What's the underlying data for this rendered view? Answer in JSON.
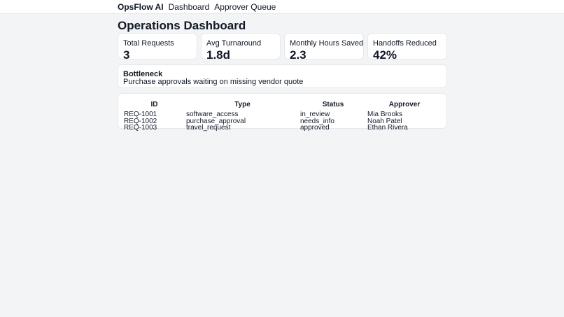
{
  "nav": {
    "brand": "OpsFlow AI",
    "links": [
      "Dashboard",
      "Approver Queue"
    ]
  },
  "page_title": "Operations Dashboard",
  "stats": [
    {
      "label": "Total Requests",
      "value": "3"
    },
    {
      "label": "Avg Turnaround",
      "value": "1.8d"
    },
    {
      "label": "Monthly Hours Saved",
      "value": "2.3"
    },
    {
      "label": "Handoffs Reduced",
      "value": "42%"
    }
  ],
  "bottleneck": {
    "title": "Bottleneck",
    "text": "Purchase approvals waiting on missing vendor quote"
  },
  "table": {
    "headers": [
      "ID",
      "Type",
      "Status",
      "Approver"
    ],
    "rows": [
      [
        "REQ-1001",
        "software_access",
        "in_review",
        "Mia Brooks"
      ],
      [
        "REQ-1002",
        "purchase_approval",
        "needs_info",
        "Noah Patel"
      ],
      [
        "REQ-1003",
        "travel_request",
        "approved",
        "Ethan Rivera"
      ]
    ]
  },
  "colors": {
    "page_bg": "#f3f4f6",
    "card_bg": "#ffffff",
    "border": "#e5e7eb",
    "text": "#111827"
  }
}
